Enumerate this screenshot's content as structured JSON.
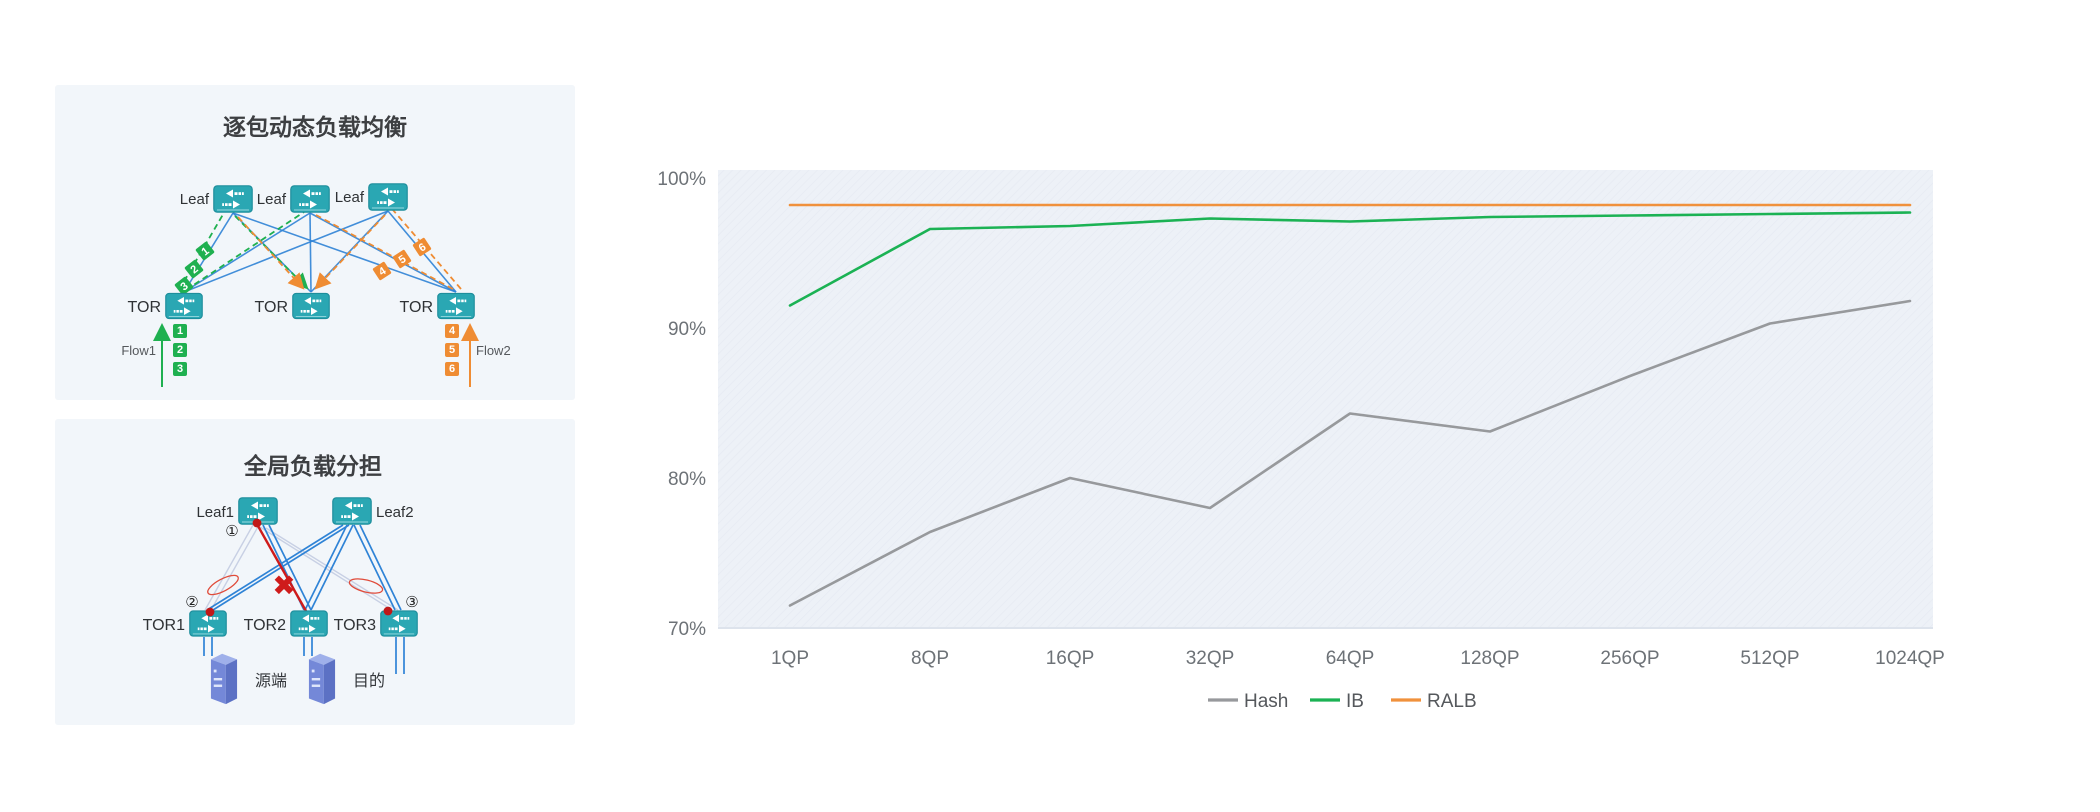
{
  "panel1": {
    "title": "逐包动态负载均衡",
    "leaf_labels": [
      "Leaf",
      "Leaf",
      "Leaf"
    ],
    "tor_labels": [
      "TOR",
      "TOR",
      "TOR"
    ],
    "flow1": {
      "label": "Flow1",
      "packets": [
        "1",
        "2",
        "3"
      ],
      "color": "#1fb050"
    },
    "flow2": {
      "label": "Flow2",
      "packets": [
        "4",
        "5",
        "6"
      ],
      "color": "#ef8c33"
    }
  },
  "panel2": {
    "title": "全局负载分担",
    "leaf_labels": [
      "Leaf1",
      "Leaf2"
    ],
    "tor_labels": [
      "TOR1",
      "TOR2",
      "TOR3"
    ],
    "markers": [
      "①",
      "②",
      "③"
    ],
    "fail_x": "✖",
    "source_label": "源端",
    "dest_label": "目的"
  },
  "chart_data": {
    "type": "line",
    "categories": [
      "1QP",
      "8QP",
      "16QP",
      "32QP",
      "64QP",
      "128QP",
      "256QP",
      "512QP",
      "1024QP"
    ],
    "series": [
      {
        "name": "Hash",
        "color": "#97999c",
        "values": [
          71.5,
          76.4,
          80.0,
          78.0,
          84.3,
          83.1,
          86.8,
          90.3,
          91.8
        ]
      },
      {
        "name": "IB",
        "color": "#1bb254",
        "values": [
          91.5,
          96.6,
          96.8,
          97.3,
          97.1,
          97.4,
          97.5,
          97.6,
          97.7
        ]
      },
      {
        "name": "RALB",
        "color": "#f0913c",
        "values": [
          98.2,
          98.2,
          98.2,
          98.2,
          98.2,
          98.2,
          98.2,
          98.2,
          98.2
        ]
      }
    ],
    "y_ticks": [
      {
        "value": 100,
        "label": "100%"
      },
      {
        "value": 90,
        "label": "90%"
      },
      {
        "value": 80,
        "label": "80%"
      },
      {
        "value": 70,
        "label": "70%"
      }
    ],
    "ylim": [
      70,
      100
    ],
    "xlabel": "",
    "ylabel": "",
    "grid": false,
    "legend_position": "bottom"
  }
}
